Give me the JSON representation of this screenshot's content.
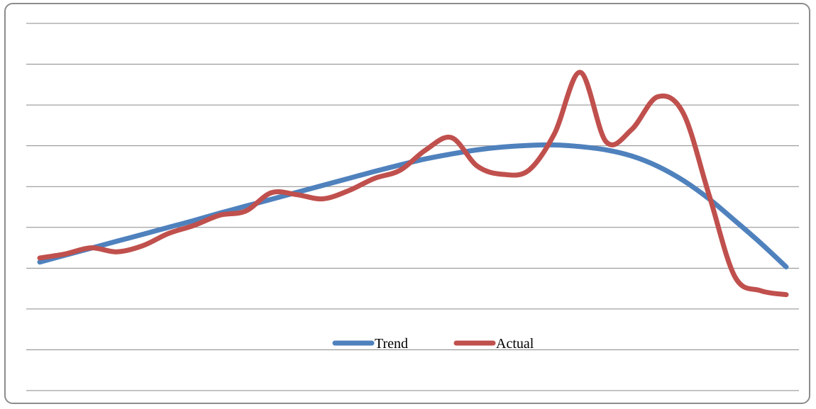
{
  "chart_data": {
    "type": "line",
    "title": "",
    "xlabel": "",
    "ylabel": "",
    "grid": true,
    "legend_position": "bottom",
    "ylim": [
      0,
      9
    ],
    "gridline_values": [
      0,
      1,
      2,
      3,
      4,
      5,
      6,
      7,
      8,
      9
    ],
    "x": [
      1,
      2,
      3,
      4,
      5,
      6,
      7,
      8,
      9,
      10,
      11,
      12,
      13,
      14,
      15,
      16,
      17,
      18,
      19,
      20,
      21,
      22,
      23,
      24,
      25,
      26,
      27,
      28,
      29,
      30
    ],
    "series": [
      {
        "name": "Trend",
        "color": "#4f81bd",
        "values": [
          3.15,
          3.32,
          3.49,
          3.66,
          3.83,
          4.0,
          4.17,
          4.35,
          4.52,
          4.69,
          4.86,
          5.03,
          5.2,
          5.37,
          5.53,
          5.68,
          5.8,
          5.9,
          5.97,
          6.01,
          6.02,
          5.98,
          5.9,
          5.75,
          5.5,
          5.15,
          4.7,
          4.17,
          3.62,
          3.03
        ]
      },
      {
        "name": "Actual",
        "color": "#c0504d",
        "values": [
          3.25,
          3.35,
          3.5,
          3.4,
          3.55,
          3.85,
          4.05,
          4.3,
          4.4,
          4.85,
          4.8,
          4.7,
          4.9,
          5.2,
          5.4,
          5.9,
          6.2,
          5.5,
          5.3,
          5.4,
          6.3,
          7.8,
          6.1,
          6.4,
          7.2,
          6.8,
          4.8,
          2.8,
          2.45,
          2.35
        ]
      }
    ]
  }
}
